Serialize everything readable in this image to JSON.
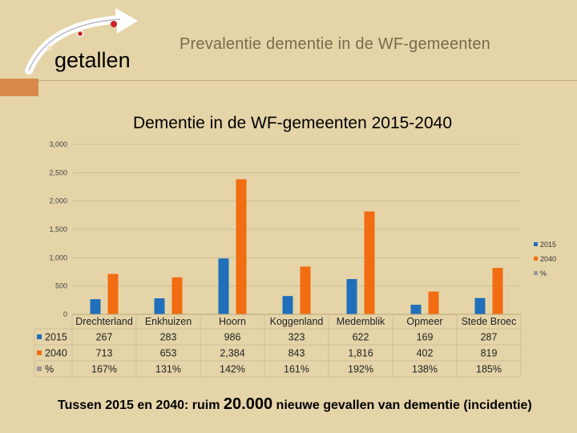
{
  "header": {
    "logo_text": "getallen",
    "slide_title": "Prevalentie dementie in de WF-gemeenten"
  },
  "chart_data": {
    "type": "bar",
    "title": "Dementie in de WF-gemeenten 2015-2040",
    "categories": [
      "Drechterland",
      "Enkhuizen",
      "Hoorn",
      "Koggenland",
      "Medemblik",
      "Opmeer",
      "Stede Broec"
    ],
    "series": [
      {
        "name": "2015",
        "values": [
          267,
          283,
          986,
          323,
          622,
          169,
          287
        ],
        "labels": [
          "267",
          "283",
          "986",
          "323",
          "622",
          "169",
          "287"
        ],
        "color": "#1f6fba"
      },
      {
        "name": "2040",
        "values": [
          713,
          653,
          2384,
          843,
          1816,
          402,
          819
        ],
        "labels": [
          "713",
          "653",
          "2,384",
          "843",
          "1,816",
          "402",
          "819"
        ],
        "color": "#f26c12"
      },
      {
        "name": "%",
        "values": [
          167,
          131,
          142,
          161,
          192,
          138,
          185
        ],
        "labels": [
          "167%",
          "131%",
          "142%",
          "161%",
          "192%",
          "138%",
          "185%"
        ],
        "color": "#9a9a9a"
      }
    ],
    "yticks": [
      "0",
      "500",
      "1,000",
      "1,500",
      "2,000",
      "2,500",
      "3,000"
    ],
    "ylim": [
      0,
      3000
    ],
    "legend": "right",
    "data_table": true
  },
  "footnote": {
    "part1": "Tussen 2015 en 2040: ruim ",
    "big": "20.000",
    "part2": " nieuwe gevallen van dementie (incidentie)"
  }
}
